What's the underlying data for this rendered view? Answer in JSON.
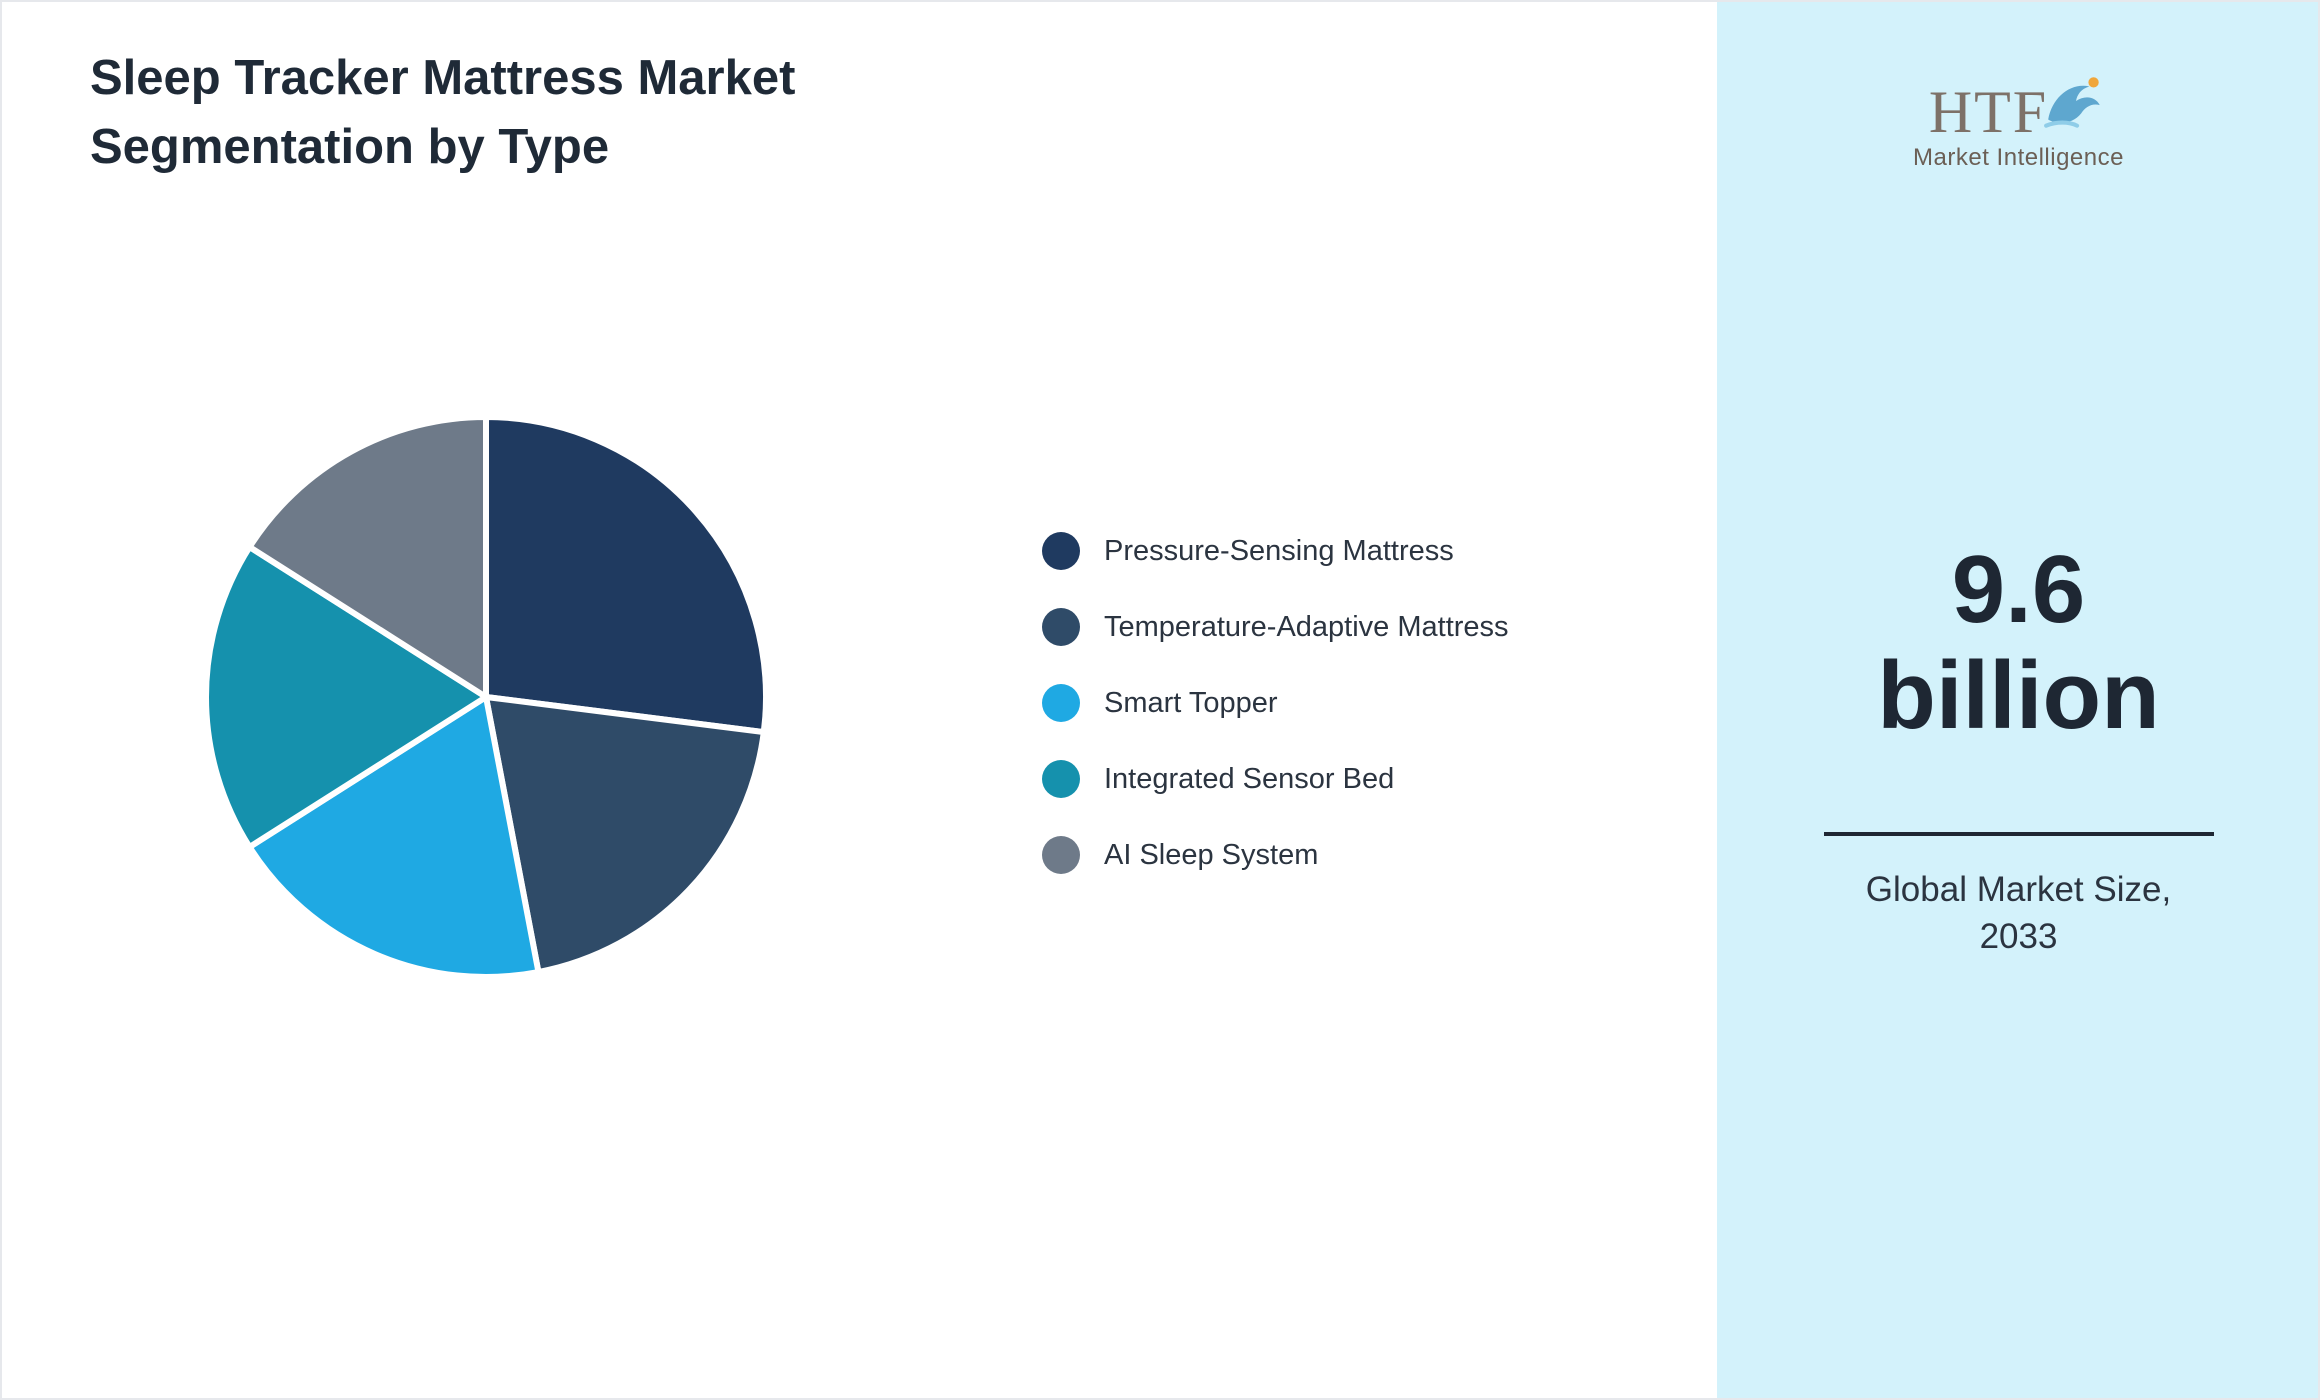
{
  "title": "Sleep Tracker Mattress Market Segmentation by Type",
  "chart_data": {
    "type": "pie",
    "title": "Sleep Tracker Mattress Market Segmentation by Type",
    "labels": [
      "Pressure-Sensing Mattress",
      "Temperature-Adaptive Mattress",
      "Smart Topper",
      "Integrated Sensor Bed",
      "AI Sleep System"
    ],
    "values": [
      27,
      20,
      19,
      18,
      16
    ],
    "colors": [
      "#1f3a60",
      "#2f4b68",
      "#1fa9e3",
      "#1591ad",
      "#6e7a89"
    ],
    "legend_position": "right",
    "start_angle_deg": 0,
    "direction": "clockwise",
    "slice_border_color": "#ffffff"
  },
  "sidebar": {
    "background": "#d3f2fb",
    "logo_text": "HTF",
    "logo_subtext": "Market Intelligence",
    "stat_line1": "9.6",
    "stat_line2": "billion",
    "caption_line1": "Global Market Size,",
    "caption_line2": "2033"
  }
}
